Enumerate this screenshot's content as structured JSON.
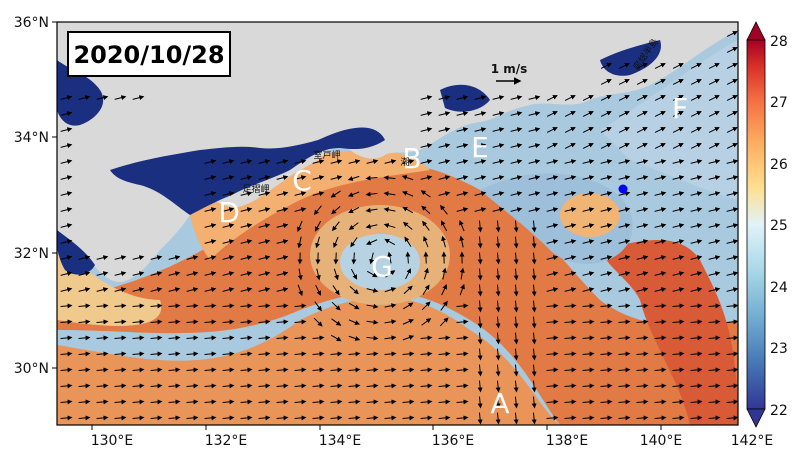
{
  "date": "2020/10/28",
  "scale_label": "1 m/s",
  "lon_ticks": [
    "130°E",
    "132°E",
    "134°E",
    "136°E",
    "138°E",
    "140°E",
    "142°E"
  ],
  "lat_ticks": [
    "36°N",
    "34°N",
    "32°N",
    "30°N"
  ],
  "colorbar": {
    "ticks": [
      "28",
      "27",
      "26",
      "25",
      "24",
      "23",
      "22"
    ],
    "min": 22,
    "max": 28,
    "colors": [
      "#313695",
      "#4575b4",
      "#74add1",
      "#abd9e9",
      "#e0f3f8",
      "#fee090",
      "#fdae61",
      "#f46d43",
      "#d73027",
      "#a50026"
    ]
  },
  "regions": [
    "A",
    "B",
    "C",
    "D",
    "E",
    "F",
    "G"
  ],
  "place_labels": {
    "muroto": "室戸岬",
    "ashizuri": "足摺岬",
    "boso": "房総半島",
    "shio": "潮"
  },
  "marker_color": "#0000ff",
  "colors": {
    "land": "#d9d9d9",
    "shallow": "#1a2f80",
    "warm": "#e0763a",
    "cool": "#8fb8d8"
  }
}
